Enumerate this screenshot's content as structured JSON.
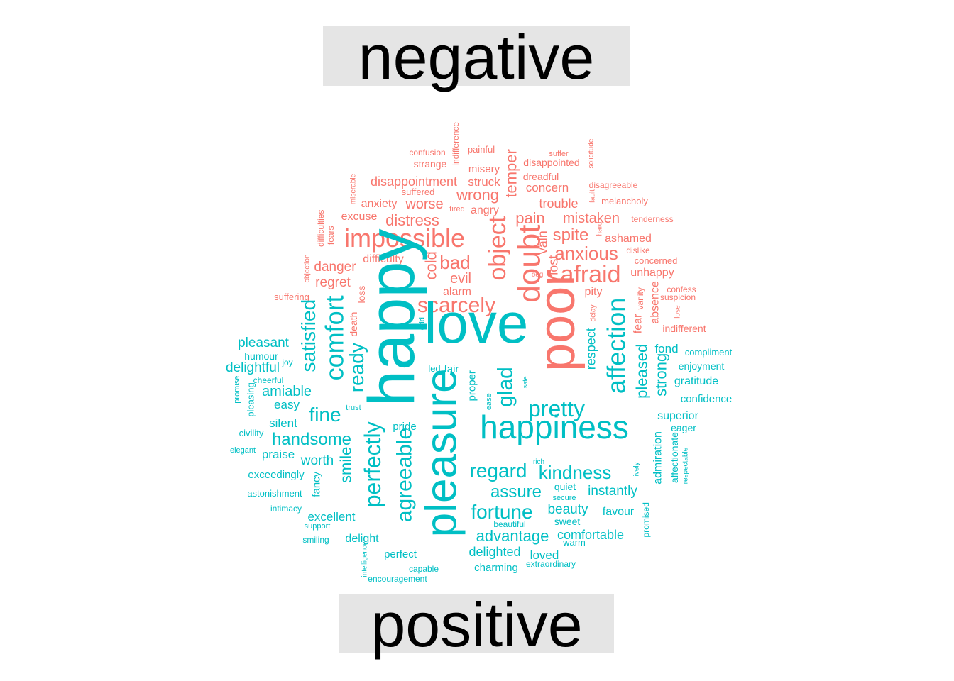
{
  "chart_data": {
    "type": "wordcloud",
    "groups": [
      {
        "label": "negative",
        "color": "#f8766d",
        "words": [
          "poor",
          "impossible",
          "doubt",
          "object",
          "afraid",
          "scarcely",
          "bad",
          "anxious",
          "spite",
          "pain",
          "temper",
          "wrong",
          "disappointment",
          "distress",
          "worse",
          "anxiety",
          "danger",
          "regret",
          "evil",
          "alarm",
          "cold",
          "lost",
          "vain",
          "mistaken",
          "trouble",
          "concern",
          "struck",
          "misery",
          "angry",
          "excuse",
          "difficulty",
          "ashamed",
          "unhappy",
          "pity",
          "absence",
          "fear",
          "indifferent",
          "loss",
          "death",
          "suffering",
          "confusion",
          "strange",
          "painful",
          "indifference",
          "disappointed",
          "dreadful",
          "suffer",
          "solicitude",
          "disagreeable",
          "melancholy",
          "fault",
          "tenderness",
          "hard",
          "dislike",
          "concerned",
          "confess",
          "suspicion",
          "lose",
          "vanity",
          "delay",
          "beg",
          "miserable",
          "suffered",
          "tired",
          "difficulties",
          "fears",
          "objection"
        ]
      },
      {
        "label": "positive",
        "color": "#00bfc4",
        "words": [
          "happy",
          "love",
          "pleasure",
          "happiness",
          "affection",
          "comfort",
          "agreeable",
          "perfectly",
          "glad",
          "pretty",
          "regard",
          "kindness",
          "fortune",
          "assure",
          "fine",
          "handsome",
          "satisfied",
          "ready",
          "smile",
          "pleased",
          "strong",
          "respect",
          "advantage",
          "comfortable",
          "beauty",
          "instantly",
          "delighted",
          "loved",
          "pleasant",
          "delightful",
          "amiable",
          "easy",
          "silent",
          "praise",
          "worth",
          "excellent",
          "delight",
          "favour",
          "charming",
          "perfect",
          "fond",
          "enjoyment",
          "gratitude",
          "compliment",
          "confidence",
          "superior",
          "eager",
          "admiration",
          "affectionate",
          "respectable",
          "humour",
          "joy",
          "cheerful",
          "pleasing",
          "promise",
          "civility",
          "elegant",
          "exceedingly",
          "astonishment",
          "intimacy",
          "support",
          "smiling",
          "fancy",
          "pride",
          "proper",
          "ease",
          "safe",
          "led",
          "fair",
          "trust",
          "odd",
          "quiet",
          "secure",
          "sweet",
          "warm",
          "beautiful",
          "rich",
          "lively",
          "promised",
          "capable",
          "extraordinary",
          "encouragement",
          "intelligence"
        ]
      }
    ]
  }
}
